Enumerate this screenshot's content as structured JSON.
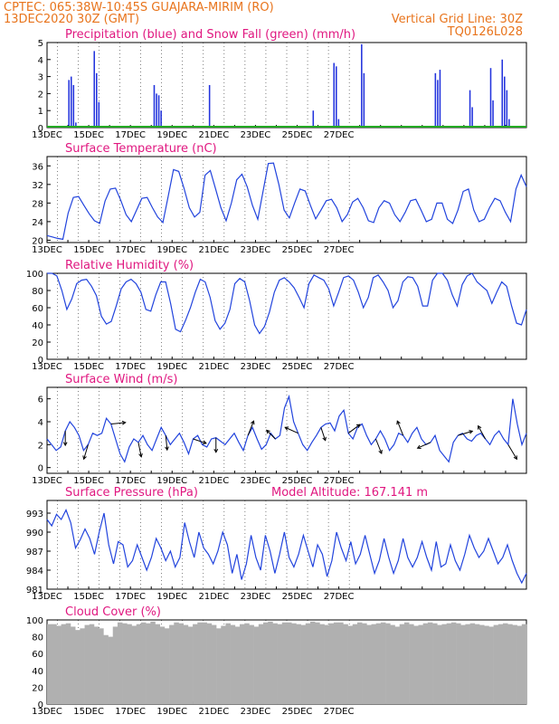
{
  "header": {
    "line1": "CPTEC:   065:38W-10:45S   GUAJARA-MIRIM (RO)",
    "line2": "13DEC2020  30Z  (GMT)",
    "grid_note": "Vertical Grid Line: 30Z",
    "code": "TQ0126L028"
  },
  "colors": {
    "header": "#e8741c",
    "panel_title": "#e01880",
    "line": "#2244dd",
    "precip": "#2233dd",
    "snow": "#22aa22",
    "wind_arrow": "#000000",
    "cloud": "#b0b0b0"
  },
  "chart_data": [
    {
      "type": "bar",
      "title": "Precipitation (blue) and Snow Fall (green) (mm/h)",
      "x_labels": [
        "13DEC",
        "15DEC",
        "17DEC",
        "19DEC",
        "21DEC",
        "23DEC",
        "25DEC",
        "27DEC"
      ],
      "ylim": [
        0,
        5
      ],
      "yticks": [
        0,
        1,
        2,
        3,
        4,
        5
      ],
      "x_step_hours": 6,
      "series": [
        {
          "name": "Precipitation",
          "values": [
            0,
            0,
            0,
            0,
            0,
            0,
            0,
            0,
            0,
            2.8,
            3.0,
            2.5,
            0.3,
            0,
            0,
            0,
            0,
            0,
            0,
            0,
            4.5,
            3.2,
            1.5,
            0,
            0,
            0,
            0,
            0,
            0,
            0,
            0,
            0,
            0,
            0,
            0,
            0,
            0,
            0,
            0,
            0,
            0,
            0,
            0,
            0,
            0,
            0,
            2.5,
            2.0,
            1.9,
            1.0,
            0,
            0,
            0,
            0,
            0,
            0,
            0,
            0,
            0,
            0,
            0,
            0,
            0,
            0,
            0,
            0,
            0,
            0,
            0,
            0,
            2.5,
            0,
            0,
            0,
            0,
            0,
            0,
            0,
            0,
            0,
            0,
            0,
            0,
            0,
            0,
            0,
            0,
            0,
            0,
            0,
            0,
            0,
            0,
            0,
            0,
            0,
            0,
            0,
            0,
            0,
            0,
            0,
            0,
            0,
            0,
            0,
            0,
            0,
            0,
            0,
            0,
            0,
            0,
            0,
            0,
            1.0,
            0,
            0,
            0,
            0,
            0,
            0,
            0,
            0,
            3.8,
            3.6,
            0.5,
            0,
            0,
            0,
            0,
            0,
            0,
            0,
            0,
            0,
            4.9,
            3.2,
            0,
            0,
            0,
            0,
            0,
            0,
            0,
            0,
            0,
            0,
            0,
            0,
            0,
            0,
            0,
            0,
            0,
            0,
            0,
            0,
            0,
            0,
            0,
            0,
            0,
            0,
            0,
            0,
            0,
            0,
            3.2,
            2.8,
            3.4,
            0,
            0,
            0,
            0,
            0,
            0,
            0,
            0,
            0,
            0,
            0,
            0,
            2.2,
            1.2,
            0,
            0,
            0,
            0,
            0,
            0,
            0,
            3.5,
            1.6,
            0,
            0,
            0,
            4.0,
            3.0,
            2.2,
            0.5,
            0,
            0,
            0,
            0,
            0,
            0,
            0
          ],
          "color": "#2233dd"
        },
        {
          "name": "Snow Fall",
          "values": "all 0",
          "color": "#22aa22"
        }
      ]
    },
    {
      "type": "line",
      "title": "Surface Temperature (nC)",
      "x_labels": [
        "13DEC",
        "15DEC",
        "17DEC",
        "19DEC",
        "21DEC",
        "23DEC",
        "25DEC",
        "27DEC"
      ],
      "ylim": [
        19.5,
        38
      ],
      "yticks": [
        20,
        24,
        28,
        32,
        36
      ],
      "x_step_hours": 6,
      "series": [
        {
          "name": "",
          "values": [
            21,
            20.7,
            20.4,
            20.2,
            25.8,
            29.2,
            29.4,
            27.5,
            25.7,
            24.2,
            23.6,
            28.4,
            31.0,
            31.2,
            28.6,
            25.5,
            24.0,
            26.5,
            29.0,
            29.2,
            27.0,
            25.0,
            23.8,
            29.5,
            35.2,
            34.8,
            31.2,
            27.0,
            25.0,
            26.0,
            34.0,
            35.0,
            31.0,
            27.0,
            24.2,
            28.0,
            33.0,
            34.2,
            31.5,
            27.5,
            24.5,
            30.5,
            36.5,
            36.6,
            32.0,
            26.5,
            24.8,
            28.0,
            31.0,
            30.6,
            27.5,
            24.6,
            26.5,
            28.5,
            28.8,
            27.0,
            24.0,
            25.5,
            28.2,
            29.0,
            27.0,
            24.2,
            23.8,
            27.0,
            28.5,
            28.0,
            25.5,
            24.0,
            26.0,
            28.5,
            28.8,
            26.5,
            24.0,
            24.5,
            28.0,
            28.0,
            24.5,
            23.6,
            26.5,
            30.5,
            31.0,
            26.5,
            24.0,
            24.5,
            27.0,
            29.0,
            28.5,
            26.0,
            24.0,
            31.0,
            34.0,
            31.5
          ],
          "color": "#2244dd"
        }
      ]
    },
    {
      "type": "line",
      "title": "Relative Humidity (%)",
      "x_labels": [
        "13DEC",
        "15DEC",
        "17DEC",
        "19DEC",
        "21DEC",
        "23DEC",
        "25DEC",
        "27DEC"
      ],
      "ylim": [
        0,
        100
      ],
      "yticks": [
        0,
        20,
        40,
        60,
        80,
        100
      ],
      "x_step_hours": 6,
      "series": [
        {
          "name": "",
          "values": [
            100,
            100,
            97,
            80,
            58,
            70,
            88,
            92,
            93,
            85,
            74,
            50,
            41,
            44,
            62,
            82,
            90,
            93,
            88,
            78,
            58,
            56,
            75,
            90,
            90,
            65,
            35,
            32,
            45,
            60,
            78,
            93,
            90,
            72,
            45,
            35,
            42,
            58,
            88,
            94,
            90,
            68,
            40,
            30,
            38,
            55,
            78,
            92,
            95,
            90,
            83,
            72,
            60,
            88,
            98,
            95,
            92,
            82,
            62,
            78,
            95,
            97,
            92,
            78,
            60,
            72,
            95,
            98,
            90,
            80,
            60,
            68,
            90,
            96,
            95,
            85,
            62,
            62,
            92,
            100,
            100,
            92,
            75,
            62,
            87,
            97,
            100,
            90,
            85,
            80,
            65,
            78,
            90,
            85,
            62,
            42,
            40,
            58
          ]
        }
      ]
    },
    {
      "type": "line",
      "title": "Surface Wind (m/s)",
      "x_labels": [
        "13DEC",
        "15DEC",
        "17DEC",
        "19DEC",
        "21DEC",
        "23DEC",
        "25DEC",
        "27DEC"
      ],
      "ylim": [
        -0.5,
        7
      ],
      "yticks": [
        0,
        2,
        4,
        6
      ],
      "x_step_hours": 6,
      "series": [
        {
          "name": "",
          "values": [
            2.5,
            2.0,
            1.5,
            1.8,
            3.2,
            4.0,
            3.5,
            2.8,
            1.5,
            2.0,
            3.0,
            2.8,
            3.0,
            4.3,
            3.8,
            2.5,
            1.2,
            0.5,
            1.8,
            2.5,
            2.2,
            2.8,
            2.0,
            1.5,
            2.5,
            3.5,
            2.8,
            2.0,
            2.5,
            3.0,
            2.2,
            1.2,
            2.5,
            2.8,
            2.0,
            1.8,
            2.5,
            2.6,
            2.3,
            2.0,
            2.5,
            3.0,
            2.2,
            1.5,
            2.8,
            3.5,
            2.5,
            1.6,
            2.0,
            3.0,
            2.5,
            2.8,
            5.2,
            6.2,
            4.0,
            3.0,
            2.0,
            1.5,
            2.2,
            2.8,
            3.5,
            3.8,
            3.9,
            3.2,
            4.5,
            5.0,
            3.0,
            2.5,
            3.5,
            3.8,
            2.8,
            2.0,
            2.5,
            3.2,
            2.5,
            1.5,
            2.0,
            3.0,
            2.8,
            2.2,
            3.0,
            3.5,
            2.5,
            2.0,
            2.2,
            2.8,
            1.5,
            1.0,
            0.5,
            2.2,
            2.8,
            3.0,
            2.5,
            2.3,
            2.8,
            3.0,
            2.5,
            2.0,
            2.8,
            3.2,
            2.5,
            2.0,
            6.0,
            3.8,
            2.0,
            3.0
          ]
        }
      ],
      "arrows": [
        {
          "t": 4,
          "u": 0.0,
          "v": -1.0
        },
        {
          "t": 9,
          "u": -0.3,
          "v": -1.0
        },
        {
          "t": 14,
          "u": 1.0,
          "v": 0.1
        },
        {
          "t": 20,
          "u": 0.2,
          "v": -1.0
        },
        {
          "t": 26,
          "u": 0.1,
          "v": -1.0
        },
        {
          "t": 32,
          "u": 0.9,
          "v": -0.3
        },
        {
          "t": 37,
          "u": 0.0,
          "v": -1.0
        },
        {
          "t": 44,
          "u": 0.4,
          "v": 1.0
        },
        {
          "t": 50,
          "u": -0.6,
          "v": 0.6
        },
        {
          "t": 55,
          "u": -0.9,
          "v": 0.4
        },
        {
          "t": 60,
          "u": 0.3,
          "v": -0.9
        },
        {
          "t": 66,
          "u": 0.8,
          "v": 0.6
        },
        {
          "t": 72,
          "u": 0.4,
          "v": -1.0
        },
        {
          "t": 78,
          "u": -0.4,
          "v": 1.0
        },
        {
          "t": 84,
          "u": -0.9,
          "v": -0.4
        },
        {
          "t": 90,
          "u": 1.0,
          "v": 0.3
        },
        {
          "t": 96,
          "u": -0.5,
          "v": 0.9
        },
        {
          "t": 101,
          "u": 0.6,
          "v": -1.0
        }
      ]
    },
    {
      "type": "line",
      "title": "Surface Pressure (hPa)",
      "annotation": "Model Altitude:  167.141  m",
      "x_labels": [
        "13DEC",
        "15DEC",
        "17DEC",
        "19DEC",
        "21DEC",
        "23DEC",
        "25DEC",
        "27DEC"
      ],
      "ylim": [
        981,
        995
      ],
      "yticks": [
        981,
        984,
        987,
        990,
        993
      ],
      "x_step_hours": 6,
      "series": [
        {
          "name": "",
          "values": [
            992.0,
            991.0,
            992.8,
            992.0,
            993.5,
            991.5,
            987.5,
            988.8,
            990.5,
            989.0,
            986.5,
            990.0,
            993.0,
            988.0,
            985.0,
            988.5,
            988.0,
            984.5,
            985.5,
            988.0,
            986.0,
            984.0,
            986.0,
            989.0,
            987.5,
            985.5,
            987.0,
            984.5,
            986.0,
            991.5,
            988.5,
            986.0,
            990.0,
            987.5,
            986.5,
            985.0,
            987.0,
            990.0,
            988.0,
            983.5,
            986.5,
            982.5,
            985.0,
            989.5,
            986.0,
            984.0,
            989.5,
            987.0,
            983.5,
            986.5,
            990.0,
            986.0,
            984.5,
            986.5,
            989.5,
            987.0,
            984.5,
            988.0,
            986.5,
            983.0,
            985.5,
            990.0,
            987.5,
            985.5,
            988.5,
            985.0,
            986.5,
            989.5,
            986.5,
            983.5,
            985.5,
            989.0,
            986.0,
            983.5,
            985.5,
            989.0,
            986.0,
            984.5,
            986.0,
            988.5,
            986.0,
            984.0,
            988.5,
            984.5,
            985.0,
            988.0,
            985.5,
            984.0,
            986.5,
            989.5,
            987.5,
            986.0,
            987.0,
            989.0,
            987.0,
            985.0,
            986.0,
            988.0,
            985.5,
            983.5,
            982.0,
            983.5
          ]
        }
      ]
    },
    {
      "type": "bar",
      "title": "Cloud Cover (%)",
      "x_labels": [
        "13DEC",
        "15DEC",
        "17DEC",
        "19DEC",
        "21DEC",
        "23DEC",
        "25DEC",
        "27DEC"
      ],
      "ylim": [
        0,
        100
      ],
      "yticks": [
        0,
        20,
        40,
        60,
        80,
        100
      ],
      "x_step_hours": 6,
      "series": [
        {
          "name": "",
          "values": [
            95,
            95,
            93,
            95,
            96,
            92,
            88,
            90,
            94,
            95,
            92,
            90,
            82,
            80,
            92,
            97,
            96,
            95,
            93,
            95,
            97,
            96,
            98,
            95,
            92,
            90,
            94,
            97,
            96,
            94,
            92,
            95,
            97,
            97,
            96,
            94,
            90,
            93,
            96,
            94,
            92,
            95,
            96,
            94,
            92,
            95,
            97,
            98,
            96,
            95,
            97,
            97,
            96,
            95,
            94,
            96,
            98,
            97,
            95,
            94,
            96,
            97,
            97,
            95,
            93,
            95,
            97,
            96,
            94,
            95,
            96,
            97,
            96,
            94,
            92,
            95,
            97,
            95,
            93,
            94,
            96,
            97,
            96,
            94,
            95,
            96,
            97,
            96,
            94,
            95,
            96,
            95,
            94,
            93,
            92,
            94,
            95,
            96,
            95,
            94,
            93,
            95
          ],
          "color": "#b0b0b0"
        }
      ]
    }
  ]
}
